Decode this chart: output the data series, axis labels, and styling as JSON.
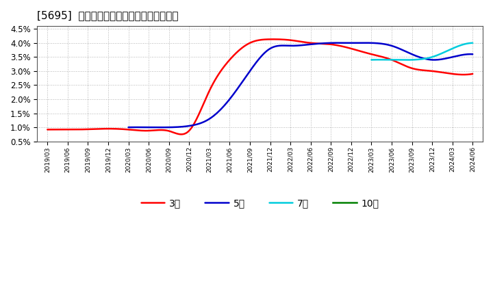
{
  "title": "[5695]  経常利益マージンの標準偏差の推移",
  "background_color": "#ffffff",
  "grid_color": "#aaaaaa",
  "ylim": [
    0.005,
    0.046
  ],
  "yticks": [
    0.005,
    0.01,
    0.015,
    0.02,
    0.025,
    0.03,
    0.035,
    0.04,
    0.045
  ],
  "ytick_labels": [
    "0.5%",
    "1.0%",
    "1.5%",
    "2.0%",
    "2.5%",
    "3.0%",
    "3.5%",
    "4.0%",
    "4.5%"
  ],
  "x_labels": [
    "2019/03",
    "2019/06",
    "2019/09",
    "2019/12",
    "2020/03",
    "2020/06",
    "2020/09",
    "2020/12",
    "2021/03",
    "2021/06",
    "2021/09",
    "2021/12",
    "2022/03",
    "2022/06",
    "2022/09",
    "2022/12",
    "2023/03",
    "2023/06",
    "2023/09",
    "2023/12",
    "2024/03",
    "2024/06"
  ],
  "series_3y": [
    0.0092,
    0.0092,
    0.0093,
    0.0095,
    0.0092,
    0.0088,
    0.0087,
    0.0088,
    0.023,
    0.034,
    0.04,
    0.0413,
    0.041,
    0.04,
    0.0395,
    0.038,
    0.036,
    0.034,
    0.031,
    0.03,
    0.029,
    0.029
  ],
  "series_5y": [
    null,
    null,
    null,
    null,
    0.01,
    0.01,
    0.01,
    0.0105,
    0.013,
    0.02,
    0.03,
    0.038,
    0.039,
    0.0395,
    0.04,
    0.04,
    0.04,
    0.039,
    0.036,
    0.034,
    0.035,
    0.036
  ],
  "series_7y": [
    null,
    null,
    null,
    null,
    null,
    null,
    null,
    null,
    null,
    null,
    null,
    null,
    null,
    null,
    null,
    null,
    0.034,
    0.034,
    0.034,
    0.035,
    0.038,
    0.04
  ],
  "series_10y": [
    null,
    null,
    null,
    null,
    null,
    null,
    null,
    null,
    null,
    null,
    null,
    null,
    null,
    null,
    null,
    null,
    null,
    null,
    null,
    null,
    null,
    null
  ],
  "legend_entries": [
    "3年",
    "5年",
    "7年",
    "10年"
  ],
  "legend_colors": [
    "#ff0000",
    "#0000cc",
    "#00ccdd",
    "#008000"
  ]
}
